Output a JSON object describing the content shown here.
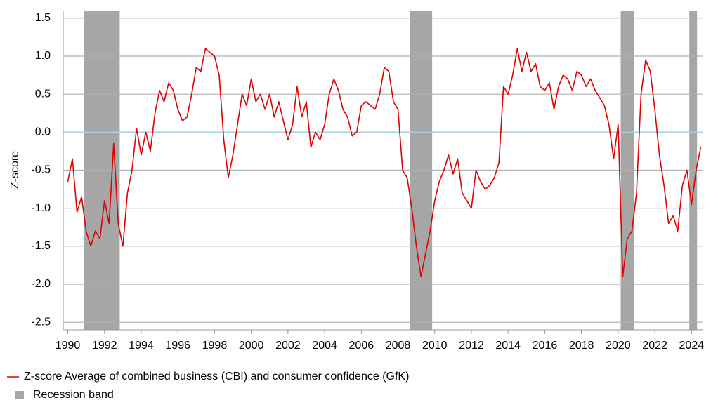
{
  "chart_data": {
    "type": "line",
    "y_label": "Z-score",
    "xlim": [
      1989.75,
      2024.6
    ],
    "xticks": [
      1990,
      1992,
      1994,
      1996,
      1998,
      2000,
      2002,
      2004,
      2006,
      2008,
      2010,
      2012,
      2014,
      2016,
      2018,
      2020,
      2022,
      2024
    ],
    "ylim": [
      -2.6,
      1.6
    ],
    "yticks": [
      1.5,
      {
        "value": 1.0,
        "label": "1.0"
      },
      0.5,
      {
        "value": 0.0,
        "label": "0.0"
      },
      -0.5,
      {
        "value": -1.0,
        "label": "-1.0"
      },
      -1.5,
      {
        "value": -2.0,
        "label": "-2.0"
      },
      -2.5
    ],
    "grid": true,
    "zero_line_color": "#a8d0e0",
    "recession_legend": "Recession band",
    "recession_color": "#a6a6a6",
    "recessions": [
      {
        "start": 1990.88,
        "end": 1992.83
      },
      {
        "start": 2008.64,
        "end": 2009.86
      },
      {
        "start": 2020.14,
        "end": 2020.86
      },
      {
        "start": 2023.88,
        "end": 2024.3
      }
    ],
    "x": [
      1990,
      1990.25,
      1990.5,
      1990.75,
      1991,
      1991.25,
      1991.5,
      1991.75,
      1992,
      1992.25,
      1992.5,
      1992.75,
      1993,
      1993.25,
      1993.5,
      1993.75,
      1994,
      1994.25,
      1994.5,
      1994.75,
      1995,
      1995.25,
      1995.5,
      1995.75,
      1996,
      1996.25,
      1996.5,
      1996.75,
      1997,
      1997.25,
      1997.5,
      1997.75,
      1998,
      1998.25,
      1998.5,
      1998.75,
      1999,
      1999.25,
      1999.5,
      1999.75,
      2000,
      2000.25,
      2000.5,
      2000.75,
      2001,
      2001.25,
      2001.5,
      2001.75,
      2002,
      2002.25,
      2002.5,
      2002.75,
      2003,
      2003.25,
      2003.5,
      2003.75,
      2004,
      2004.25,
      2004.5,
      2004.75,
      2005,
      2005.25,
      2005.5,
      2005.75,
      2006,
      2006.25,
      2006.5,
      2006.75,
      2007,
      2007.25,
      2007.5,
      2007.75,
      2008,
      2008.25,
      2008.5,
      2008.75,
      2009,
      2009.25,
      2009.5,
      2009.75,
      2010,
      2010.25,
      2010.5,
      2010.75,
      2011,
      2011.25,
      2011.5,
      2011.75,
      2012,
      2012.25,
      2012.5,
      2012.75,
      2013,
      2013.25,
      2013.5,
      2013.75,
      2014,
      2014.25,
      2014.5,
      2014.75,
      2015,
      2015.25,
      2015.5,
      2015.75,
      2016,
      2016.25,
      2016.5,
      2016.75,
      2017,
      2017.25,
      2017.5,
      2017.75,
      2018,
      2018.25,
      2018.5,
      2018.75,
      2019,
      2019.25,
      2019.5,
      2019.75,
      2020,
      2020.25,
      2020.5,
      2020.75,
      2021,
      2021.25,
      2021.5,
      2021.75,
      2022,
      2022.25,
      2022.5,
      2022.75,
      2023,
      2023.25,
      2023.5,
      2023.75,
      2024,
      2024.25,
      2024.5
    ],
    "series": [
      {
        "name": "Z-score Average of combined business (CBI) and consumer confidence (GfK)",
        "color": "#e00000",
        "values": [
          -0.65,
          -0.35,
          -1.05,
          -0.85,
          -1.3,
          -1.5,
          -1.3,
          -1.4,
          -0.9,
          -1.2,
          -0.15,
          -1.2,
          -1.5,
          -0.8,
          -0.5,
          0.05,
          -0.3,
          0.0,
          -0.25,
          0.25,
          0.55,
          0.4,
          0.65,
          0.55,
          0.3,
          0.15,
          0.2,
          0.5,
          0.85,
          0.8,
          1.1,
          1.05,
          1.0,
          0.75,
          -0.1,
          -0.6,
          -0.3,
          0.1,
          0.5,
          0.35,
          0.7,
          0.4,
          0.5,
          0.3,
          0.5,
          0.2,
          0.4,
          0.15,
          -0.1,
          0.1,
          0.6,
          0.2,
          0.4,
          -0.2,
          0.0,
          -0.1,
          0.1,
          0.5,
          0.7,
          0.55,
          0.3,
          0.2,
          -0.05,
          0.0,
          0.35,
          0.4,
          0.35,
          0.3,
          0.5,
          0.85,
          0.8,
          0.4,
          0.3,
          -0.5,
          -0.6,
          -1.0,
          -1.5,
          -1.9,
          -1.6,
          -1.3,
          -0.9,
          -0.65,
          -0.5,
          -0.3,
          -0.55,
          -0.35,
          -0.8,
          -0.9,
          -1.0,
          -0.5,
          -0.65,
          -0.75,
          -0.7,
          -0.6,
          -0.4,
          0.6,
          0.5,
          0.75,
          1.1,
          0.8,
          1.05,
          0.8,
          0.9,
          0.6,
          0.55,
          0.65,
          0.3,
          0.6,
          0.75,
          0.7,
          0.55,
          0.8,
          0.75,
          0.6,
          0.7,
          0.55,
          0.45,
          0.35,
          0.1,
          -0.35,
          0.1,
          -1.9,
          -1.4,
          -1.3,
          -0.8,
          0.5,
          0.95,
          0.8,
          0.3,
          -0.3,
          -0.7,
          -1.2,
          -1.1,
          -1.3,
          -0.7,
          -0.5,
          -0.95,
          -0.5,
          -0.2
        ]
      }
    ]
  }
}
